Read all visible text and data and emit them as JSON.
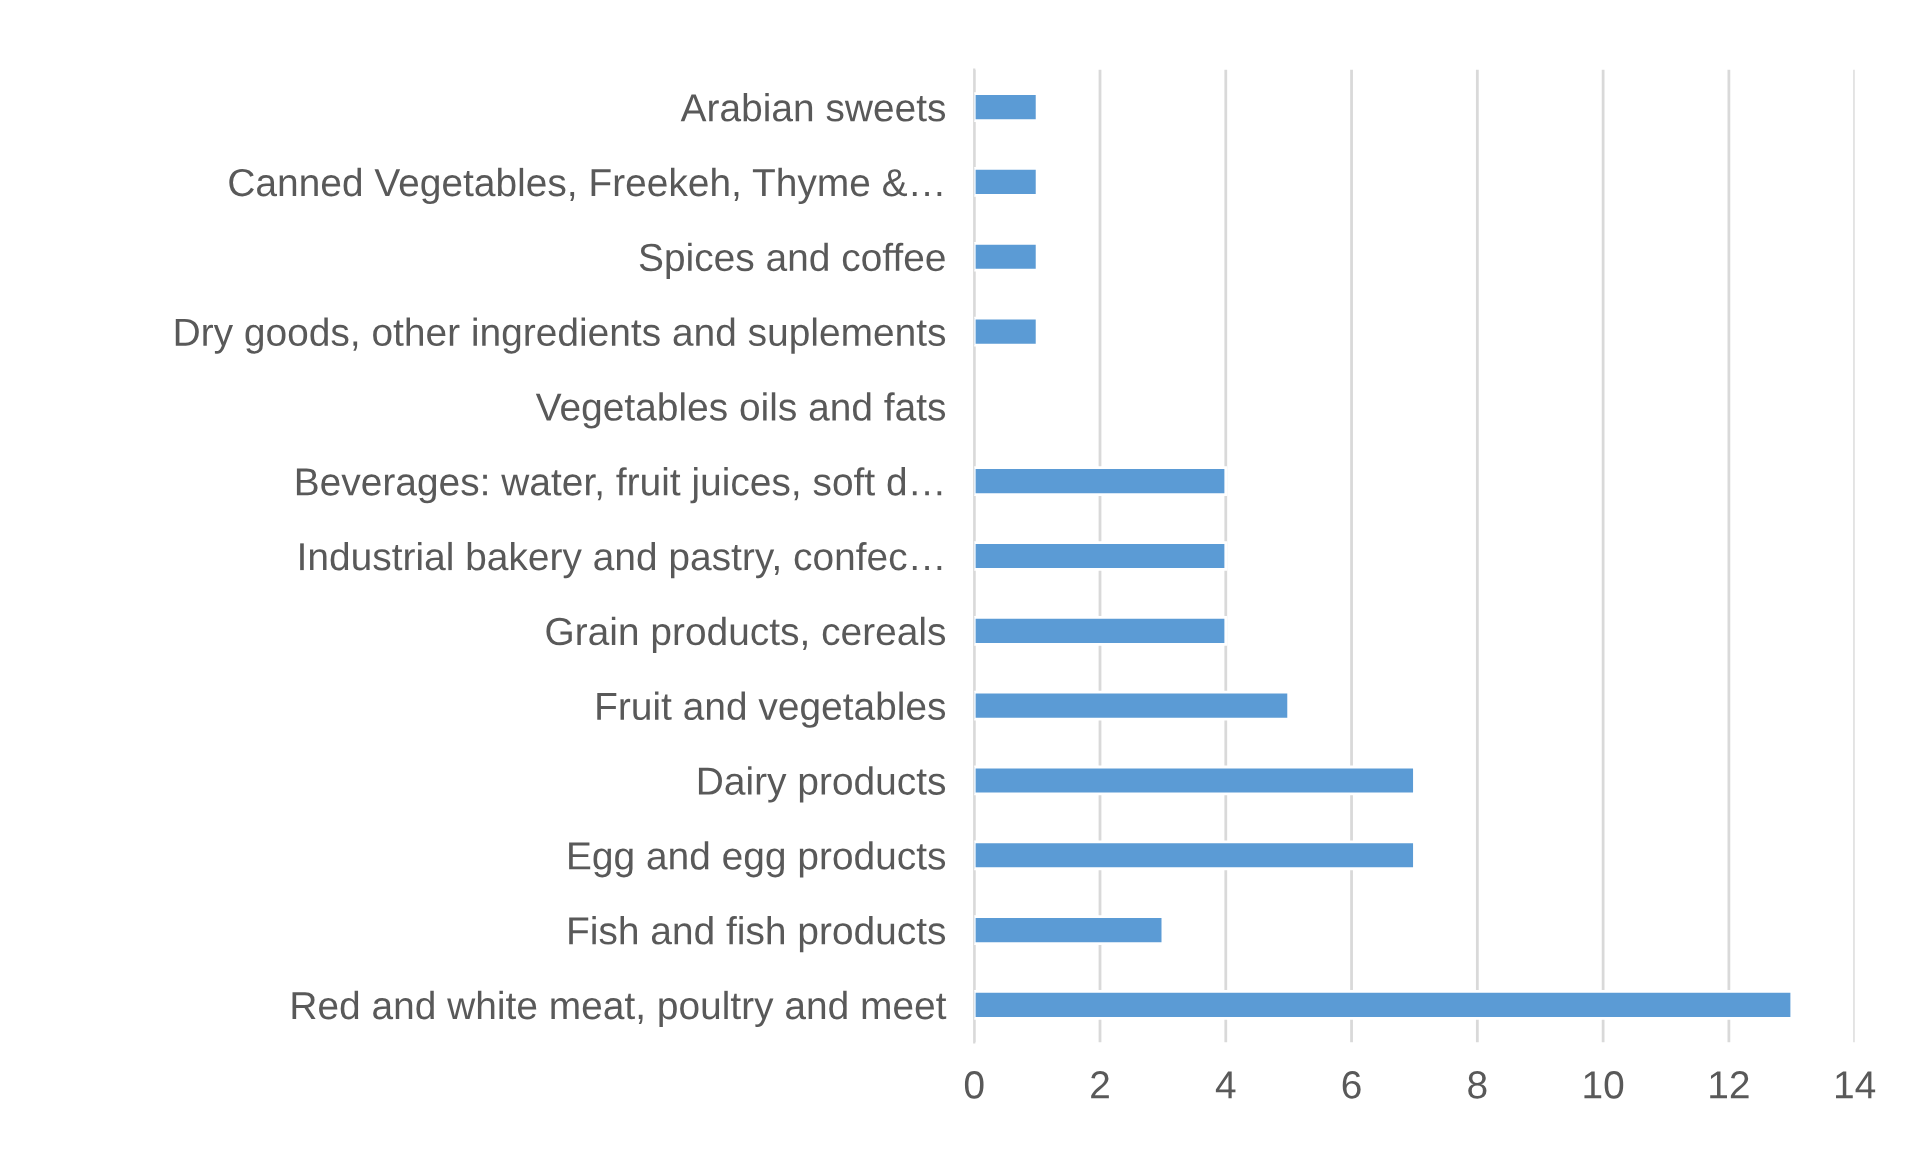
{
  "chart_data": {
    "type": "bar",
    "orientation": "horizontal",
    "categories": [
      "Arabian sweets",
      "Canned Vegetables, Freekeh, Thyme &…",
      "Spices and coffee",
      "Dry goods, other ingredients and suplements",
      "Vegetables oils and fats",
      "Beverages: water, fruit juices, soft d…",
      "Industrial bakery and pastry, confec…",
      "Grain products, cereals",
      "Fruit and vegetables",
      "Dairy products",
      "Egg and egg products",
      "Fish and fish products",
      "Red and white meat, poultry and meet"
    ],
    "values": [
      1,
      1,
      1,
      1,
      0,
      4,
      4,
      4,
      5,
      7,
      7,
      3,
      13
    ],
    "color": "#5b9bd5",
    "xlim": [
      0,
      14
    ],
    "xticks": [
      0,
      2,
      4,
      6,
      8,
      10,
      12,
      14
    ],
    "grid": "x",
    "legend": false
  }
}
